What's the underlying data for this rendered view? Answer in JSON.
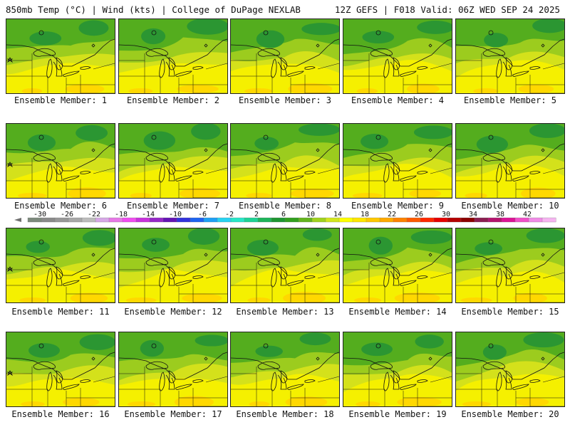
{
  "header": {
    "left_title": "850mb Temp (°C) | Wind (kts) | College of DuPage NEXLAB",
    "right_title": "12Z GEFS | F018 Valid: 06Z WED SEP 24 2025"
  },
  "member_label_prefix": "Ensemble Member: ",
  "members": [
    {
      "id": 1,
      "label": "Ensemble Member: 1"
    },
    {
      "id": 2,
      "label": "Ensemble Member: 2"
    },
    {
      "id": 3,
      "label": "Ensemble Member: 3"
    },
    {
      "id": 4,
      "label": "Ensemble Member: 4"
    },
    {
      "id": 5,
      "label": "Ensemble Member: 5"
    },
    {
      "id": 6,
      "label": "Ensemble Member: 6"
    },
    {
      "id": 7,
      "label": "Ensemble Member: 7"
    },
    {
      "id": 8,
      "label": "Ensemble Member: 8"
    },
    {
      "id": 9,
      "label": "Ensemble Member: 9"
    },
    {
      "id": 10,
      "label": "Ensemble Member: 10"
    },
    {
      "id": 11,
      "label": "Ensemble Member: 11"
    },
    {
      "id": 12,
      "label": "Ensemble Member: 12"
    },
    {
      "id": 13,
      "label": "Ensemble Member: 13"
    },
    {
      "id": 14,
      "label": "Ensemble Member: 14"
    },
    {
      "id": 15,
      "label": "Ensemble Member: 15"
    },
    {
      "id": 16,
      "label": "Ensemble Member: 16"
    },
    {
      "id": 17,
      "label": "Ensemble Member: 17"
    },
    {
      "id": 18,
      "label": "Ensemble Member: 18"
    },
    {
      "id": 19,
      "label": "Ensemble Member: 19"
    },
    {
      "id": 20,
      "label": "Ensemble Member: 20"
    }
  ],
  "colorbar": {
    "unit": "°C",
    "tick_labels": [
      "-30",
      "-26",
      "-22",
      "-18",
      "-14",
      "-10",
      "-6",
      "-2",
      "2",
      "6",
      "10",
      "14",
      "18",
      "22",
      "26",
      "30",
      "34",
      "38",
      "42"
    ],
    "colors": [
      "#6f6f6f",
      "#7d8a7d",
      "#8a8a8a",
      "#989898",
      "#a8a8a8",
      "#bcbcbc",
      "#d6a8e6",
      "#e678e6",
      "#f04cf0",
      "#c832dc",
      "#9628c8",
      "#6414b4",
      "#3232dc",
      "#1e64f0",
      "#1ea0f5",
      "#28d2f0",
      "#28e6c8",
      "#1ed296",
      "#1eb45a",
      "#1e9632",
      "#32a01e",
      "#64b41e",
      "#a0d21e",
      "#d2e61e",
      "#ffff00",
      "#ffe600",
      "#ffc800",
      "#ffaa00",
      "#ff8200",
      "#ff5a00",
      "#ff2800",
      "#e60000",
      "#b40000",
      "#8c0000",
      "#8c1e50",
      "#b4146e",
      "#dc1496",
      "#f050c8",
      "#f08ce6",
      "#f5b4f0"
    ]
  },
  "field_colors": {
    "dark_green": "#2b9632",
    "green": "#54ad1e",
    "light_green": "#9ccc1e",
    "yellow_green": "#d4e11b",
    "yellow": "#f5f000",
    "light_orange": "#ffd800",
    "border": "#111111"
  }
}
